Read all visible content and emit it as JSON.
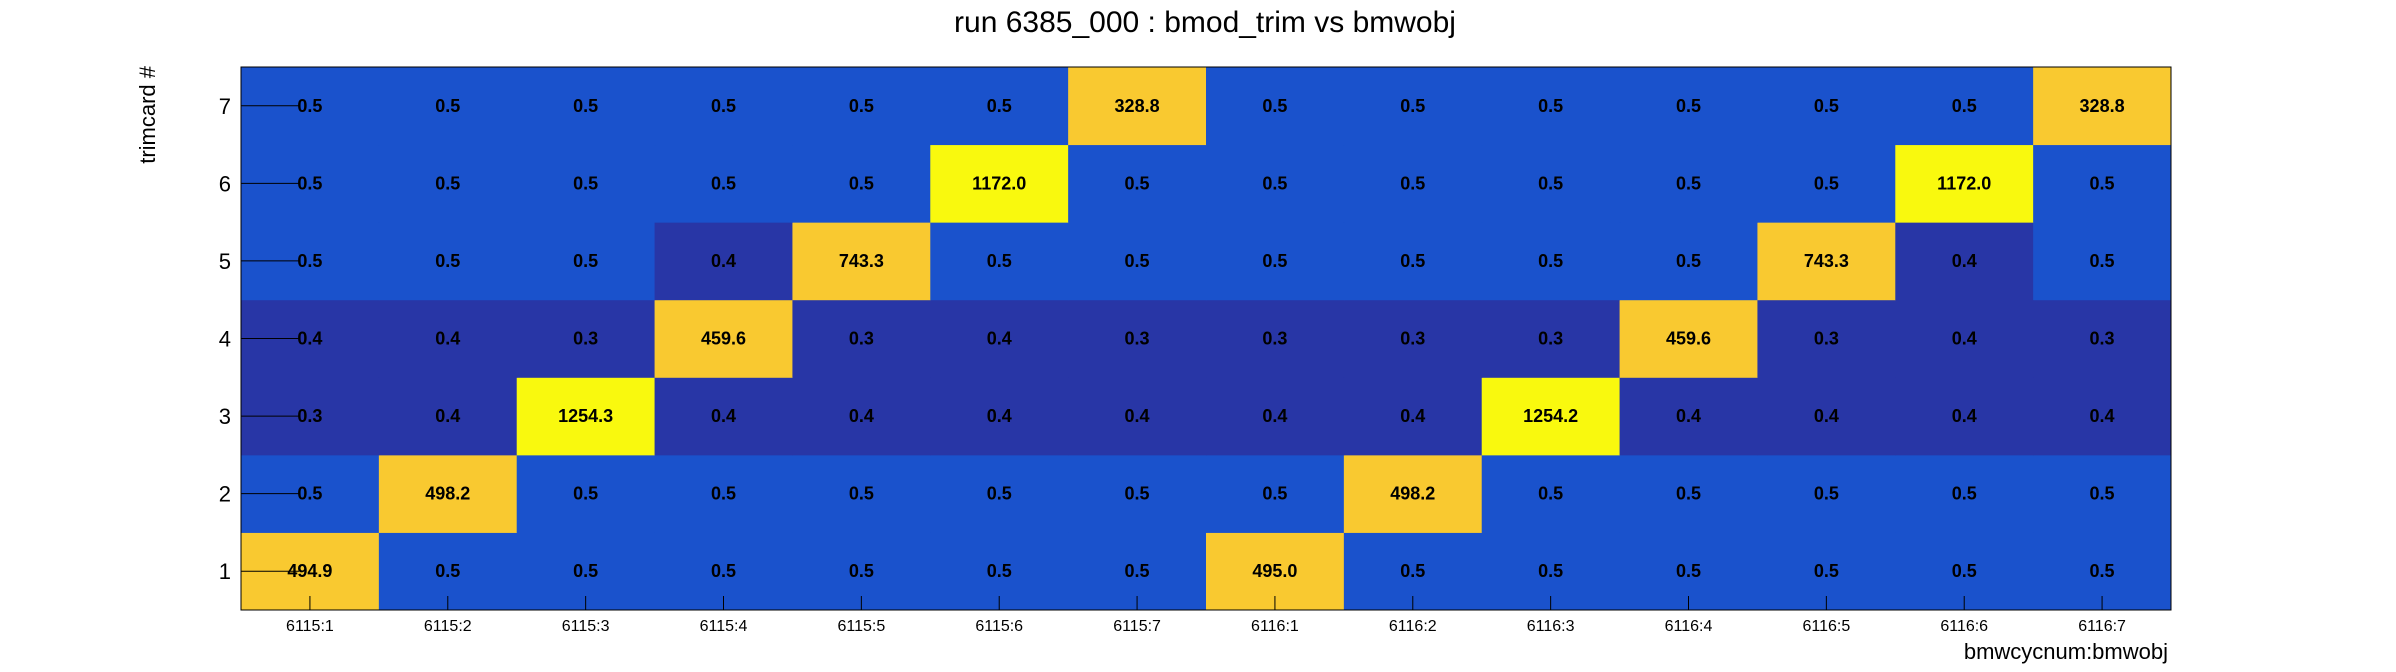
{
  "chart_data": {
    "type": "heatmap",
    "title": "run 6385_000 : bmod_trim vs bmwobj",
    "xlabel": "bmwcycnum:bmwobj",
    "ylabel": "trimcard #",
    "x_categories": [
      "6115:1",
      "6115:2",
      "6115:3",
      "6115:4",
      "6115:5",
      "6115:6",
      "6115:7",
      "6116:1",
      "6116:2",
      "6116:3",
      "6116:4",
      "6116:5",
      "6116:6",
      "6116:7"
    ],
    "y_categories": [
      "1",
      "2",
      "3",
      "4",
      "5",
      "6",
      "7"
    ],
    "values": [
      [
        494.9,
        0.5,
        0.5,
        0.5,
        0.5,
        0.5,
        0.5,
        495.0,
        0.5,
        0.5,
        0.5,
        0.5,
        0.5,
        0.5
      ],
      [
        0.5,
        498.2,
        0.5,
        0.5,
        0.5,
        0.5,
        0.5,
        0.5,
        498.2,
        0.5,
        0.5,
        0.5,
        0.5,
        0.5
      ],
      [
        0.3,
        0.4,
        1254.3,
        0.4,
        0.4,
        0.4,
        0.4,
        0.4,
        0.4,
        1254.2,
        0.4,
        0.4,
        0.4,
        0.4
      ],
      [
        0.4,
        0.4,
        0.3,
        459.6,
        0.3,
        0.4,
        0.3,
        0.3,
        0.3,
        0.3,
        459.6,
        0.3,
        0.4,
        0.3
      ],
      [
        0.5,
        0.5,
        0.5,
        0.4,
        743.3,
        0.5,
        0.5,
        0.5,
        0.5,
        0.5,
        0.5,
        743.3,
        0.4,
        0.5
      ],
      [
        0.5,
        0.5,
        0.5,
        0.5,
        0.5,
        1172.0,
        0.5,
        0.5,
        0.5,
        0.5,
        0.5,
        0.5,
        1172.0,
        0.5
      ],
      [
        0.5,
        0.5,
        0.5,
        0.5,
        0.5,
        0.5,
        328.8,
        0.5,
        0.5,
        0.5,
        0.5,
        0.5,
        0.5,
        328.8
      ]
    ],
    "value_format": "one decimal",
    "colors": {
      "low_dark": "#2836a6",
      "low": "#1a52cc",
      "mid_high": "#f9c930",
      "high": "#f9f90e"
    },
    "grid": false,
    "legend": "none"
  }
}
